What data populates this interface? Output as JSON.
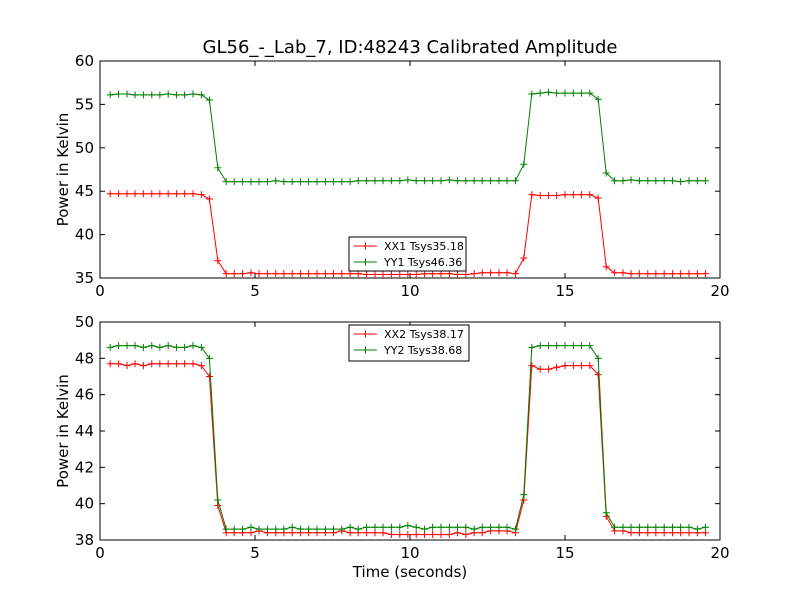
{
  "figure_title": "GL56_-_Lab_7, ID:48243 Calibrated Amplitude",
  "colors": {
    "XX": "#ff0000",
    "YY": "#008000"
  },
  "chart_data": [
    {
      "type": "line",
      "title": "GL56_-_Lab_7, ID:48243 Calibrated Amplitude",
      "xlabel": "",
      "ylabel": "Power in Kelvin",
      "xlim": [
        0,
        20
      ],
      "ylim": [
        35,
        60
      ],
      "xticks": [
        0,
        5,
        10,
        15,
        20
      ],
      "yticks": [
        35,
        40,
        45,
        50,
        55,
        60
      ],
      "grid": false,
      "legend_position": "lower-center",
      "series": [
        {
          "name": "XX1 Tsys35.18",
          "color": "#ff0000",
          "x": [
            0.33,
            0.6,
            0.87,
            1.13,
            1.4,
            1.67,
            1.93,
            2.2,
            2.47,
            2.73,
            3.0,
            3.27,
            3.53,
            3.8,
            4.07,
            4.33,
            4.6,
            4.87,
            5.13,
            5.4,
            5.67,
            5.93,
            6.2,
            6.47,
            6.73,
            7.0,
            7.27,
            7.53,
            7.8,
            8.07,
            8.33,
            8.6,
            8.87,
            9.13,
            9.4,
            9.67,
            9.93,
            10.2,
            10.47,
            10.73,
            11.0,
            11.27,
            11.53,
            11.8,
            12.07,
            12.33,
            12.6,
            12.87,
            13.13,
            13.4,
            13.67,
            13.93,
            14.2,
            14.47,
            14.73,
            15.0,
            15.27,
            15.53,
            15.8,
            16.07,
            16.33,
            16.6,
            16.87,
            17.13,
            17.4,
            17.67,
            17.93,
            18.2,
            18.47,
            18.73,
            19.0,
            19.27,
            19.53
          ],
          "y": [
            44.7,
            44.7,
            44.7,
            44.7,
            44.7,
            44.7,
            44.7,
            44.7,
            44.7,
            44.7,
            44.7,
            44.6,
            44.1,
            37.0,
            35.5,
            35.5,
            35.5,
            35.6,
            35.5,
            35.5,
            35.5,
            35.5,
            35.5,
            35.5,
            35.5,
            35.5,
            35.5,
            35.5,
            35.5,
            35.5,
            35.5,
            35.4,
            35.4,
            35.4,
            35.4,
            35.4,
            35.4,
            35.4,
            35.5,
            35.5,
            35.5,
            35.5,
            35.4,
            35.4,
            35.5,
            35.6,
            35.6,
            35.6,
            35.6,
            35.5,
            37.3,
            44.6,
            44.5,
            44.5,
            44.5,
            44.6,
            44.6,
            44.6,
            44.6,
            44.2,
            36.3,
            35.6,
            35.6,
            35.5,
            35.5,
            35.5,
            35.5,
            35.5,
            35.5,
            35.5,
            35.5,
            35.5,
            35.5
          ]
        },
        {
          "name": "YY1 Tsys46.36",
          "color": "#008000",
          "x": [
            0.33,
            0.6,
            0.87,
            1.13,
            1.4,
            1.67,
            1.93,
            2.2,
            2.47,
            2.73,
            3.0,
            3.27,
            3.53,
            3.8,
            4.07,
            4.33,
            4.6,
            4.87,
            5.13,
            5.4,
            5.67,
            5.93,
            6.2,
            6.47,
            6.73,
            7.0,
            7.27,
            7.53,
            7.8,
            8.07,
            8.33,
            8.6,
            8.87,
            9.13,
            9.4,
            9.67,
            9.93,
            10.2,
            10.47,
            10.73,
            11.0,
            11.27,
            11.53,
            11.8,
            12.07,
            12.33,
            12.6,
            12.87,
            13.13,
            13.4,
            13.67,
            13.93,
            14.2,
            14.47,
            14.73,
            15.0,
            15.27,
            15.53,
            15.8,
            16.07,
            16.33,
            16.6,
            16.87,
            17.13,
            17.4,
            17.67,
            17.93,
            18.2,
            18.47,
            18.73,
            19.0,
            19.27,
            19.53
          ],
          "y": [
            56.1,
            56.2,
            56.2,
            56.1,
            56.1,
            56.1,
            56.1,
            56.2,
            56.1,
            56.1,
            56.2,
            56.1,
            55.5,
            47.7,
            46.1,
            46.1,
            46.1,
            46.1,
            46.1,
            46.1,
            46.2,
            46.1,
            46.1,
            46.1,
            46.1,
            46.1,
            46.1,
            46.1,
            46.1,
            46.1,
            46.2,
            46.2,
            46.2,
            46.2,
            46.2,
            46.2,
            46.3,
            46.2,
            46.2,
            46.2,
            46.2,
            46.3,
            46.2,
            46.2,
            46.2,
            46.2,
            46.2,
            46.2,
            46.2,
            46.2,
            48.1,
            56.2,
            56.3,
            56.4,
            56.3,
            56.3,
            56.3,
            56.3,
            56.3,
            55.6,
            47.1,
            46.2,
            46.2,
            46.3,
            46.2,
            46.2,
            46.2,
            46.2,
            46.2,
            46.1,
            46.2,
            46.2,
            46.2
          ]
        }
      ]
    },
    {
      "type": "line",
      "title": "",
      "xlabel": "Time (seconds)",
      "ylabel": "Power in Kelvin",
      "xlim": [
        0,
        20
      ],
      "ylim": [
        38,
        50
      ],
      "xticks": [
        0,
        5,
        10,
        15,
        20
      ],
      "yticks": [
        38,
        40,
        42,
        44,
        46,
        48,
        50
      ],
      "grid": false,
      "legend_position": "upper-center",
      "series": [
        {
          "name": "XX2 Tsys38.17",
          "color": "#ff0000",
          "x": [
            0.33,
            0.6,
            0.87,
            1.13,
            1.4,
            1.67,
            1.93,
            2.2,
            2.47,
            2.73,
            3.0,
            3.27,
            3.53,
            3.8,
            4.07,
            4.33,
            4.6,
            4.87,
            5.13,
            5.4,
            5.67,
            5.93,
            6.2,
            6.47,
            6.73,
            7.0,
            7.27,
            7.53,
            7.8,
            8.07,
            8.33,
            8.6,
            8.87,
            9.13,
            9.4,
            9.67,
            9.93,
            10.2,
            10.47,
            10.73,
            11.0,
            11.27,
            11.53,
            11.8,
            12.07,
            12.33,
            12.6,
            12.87,
            13.13,
            13.4,
            13.67,
            13.93,
            14.2,
            14.47,
            14.73,
            15.0,
            15.27,
            15.53,
            15.8,
            16.07,
            16.33,
            16.6,
            16.87,
            17.13,
            17.4,
            17.67,
            17.93,
            18.2,
            18.47,
            18.73,
            19.0,
            19.27,
            19.53
          ],
          "y": [
            47.7,
            47.7,
            47.6,
            47.7,
            47.6,
            47.7,
            47.7,
            47.7,
            47.7,
            47.7,
            47.7,
            47.6,
            47.0,
            39.9,
            38.4,
            38.4,
            38.4,
            38.4,
            38.5,
            38.4,
            38.4,
            38.4,
            38.4,
            38.4,
            38.4,
            38.4,
            38.4,
            38.4,
            38.5,
            38.4,
            38.4,
            38.4,
            38.4,
            38.4,
            38.3,
            38.3,
            38.3,
            38.3,
            38.3,
            38.3,
            38.3,
            38.3,
            38.4,
            38.3,
            38.4,
            38.4,
            38.5,
            38.5,
            38.5,
            38.4,
            40.2,
            47.6,
            47.4,
            47.4,
            47.5,
            47.6,
            47.6,
            47.6,
            47.6,
            47.1,
            39.3,
            38.5,
            38.5,
            38.4,
            38.4,
            38.4,
            38.4,
            38.4,
            38.4,
            38.4,
            38.4,
            38.4,
            38.4
          ]
        },
        {
          "name": "YY2 Tsys38.68",
          "color": "#008000",
          "x": [
            0.33,
            0.6,
            0.87,
            1.13,
            1.4,
            1.67,
            1.93,
            2.2,
            2.47,
            2.73,
            3.0,
            3.27,
            3.53,
            3.8,
            4.07,
            4.33,
            4.6,
            4.87,
            5.13,
            5.4,
            5.67,
            5.93,
            6.2,
            6.47,
            6.73,
            7.0,
            7.27,
            7.53,
            7.8,
            8.07,
            8.33,
            8.6,
            8.87,
            9.13,
            9.4,
            9.67,
            9.93,
            10.2,
            10.47,
            10.73,
            11.0,
            11.27,
            11.53,
            11.8,
            12.07,
            12.33,
            12.6,
            12.87,
            13.13,
            13.4,
            13.67,
            13.93,
            14.2,
            14.47,
            14.73,
            15.0,
            15.27,
            15.53,
            15.8,
            16.07,
            16.33,
            16.6,
            16.87,
            17.13,
            17.4,
            17.67,
            17.93,
            18.2,
            18.47,
            18.73,
            19.0,
            19.27,
            19.53
          ],
          "y": [
            48.6,
            48.7,
            48.7,
            48.7,
            48.6,
            48.7,
            48.6,
            48.7,
            48.6,
            48.6,
            48.7,
            48.6,
            48.0,
            40.2,
            38.6,
            38.6,
            38.6,
            38.7,
            38.6,
            38.6,
            38.6,
            38.6,
            38.7,
            38.6,
            38.6,
            38.6,
            38.6,
            38.6,
            38.6,
            38.7,
            38.6,
            38.7,
            38.7,
            38.7,
            38.7,
            38.7,
            38.8,
            38.7,
            38.6,
            38.7,
            38.7,
            38.7,
            38.7,
            38.7,
            38.6,
            38.7,
            38.7,
            38.7,
            38.7,
            38.6,
            40.5,
            48.6,
            48.7,
            48.7,
            48.7,
            48.7,
            48.7,
            48.7,
            48.7,
            48.0,
            39.5,
            38.7,
            38.7,
            38.7,
            38.7,
            38.7,
            38.7,
            38.7,
            38.7,
            38.7,
            38.7,
            38.6,
            38.7
          ]
        }
      ]
    }
  ]
}
